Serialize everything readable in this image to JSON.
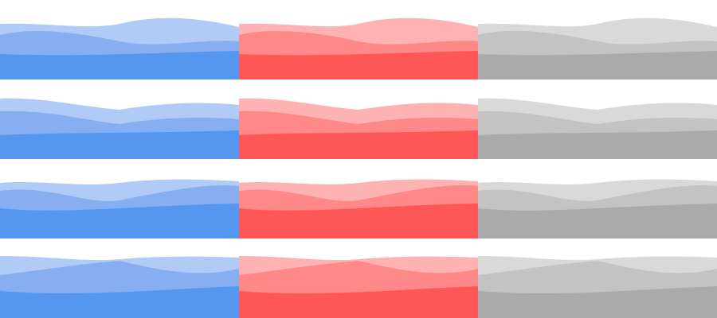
{
  "palettes": [
    {
      "name": "blue",
      "light": "#B0CBF6",
      "mid": "#7FA9EF",
      "solid": "#5596EE"
    },
    {
      "name": "red",
      "light": "#FFB2B2",
      "mid": "#FF8080",
      "solid": "#FF5757"
    },
    {
      "name": "gray",
      "light": "#D9D9D9",
      "mid": "#BEBEBE",
      "solid": "#AAAAAA"
    }
  ],
  "rows": [
    {
      "variant": "wave-set-1"
    },
    {
      "variant": "wave-set-2"
    },
    {
      "variant": "wave-set-3"
    },
    {
      "variant": "wave-set-4"
    }
  ]
}
